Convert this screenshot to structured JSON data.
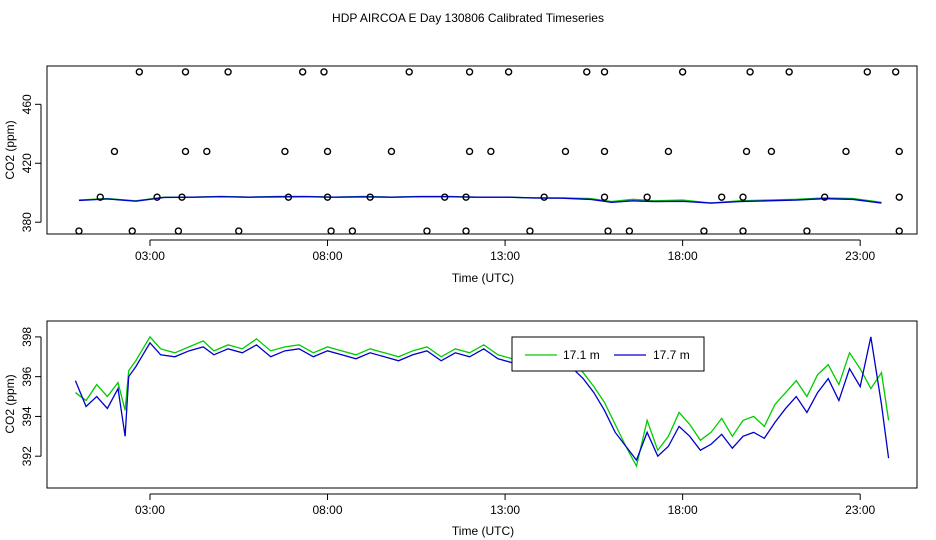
{
  "title": "HDP AIRCOA E  Day 130806  Calibrated Timeseries",
  "chart_data": [
    {
      "type": "scatter",
      "xlabel": "Time (UTC)",
      "ylabel": "CO2 (ppm)",
      "xlim": [
        0.1,
        24.6
      ],
      "ylim": [
        372,
        486
      ],
      "x_ticks": [
        3,
        8,
        13,
        18,
        23
      ],
      "x_tick_labels": [
        "03:00",
        "08:00",
        "13:00",
        "18:00",
        "23:00"
      ],
      "y_ticks": [
        380,
        420,
        460
      ],
      "y_tick_labels": [
        "380",
        "420",
        "460"
      ],
      "grid": false,
      "lines": {
        "x": [
          1.0,
          1.8,
          2.6,
          3.4,
          4.2,
          5.0,
          5.8,
          6.6,
          7.4,
          8.2,
          9.0,
          9.8,
          10.6,
          11.4,
          12.2,
          13.0,
          13.8,
          14.6,
          15.4,
          16.0,
          16.6,
          17.2,
          18.0,
          18.8,
          19.6,
          20.4,
          21.2,
          22.0,
          22.8,
          23.6
        ],
        "green": [
          395.0,
          396.0,
          394.5,
          397.0,
          397.0,
          397.5,
          397.0,
          397.5,
          397.5,
          397.0,
          397.5,
          397.0,
          397.5,
          397.5,
          397.0,
          397.0,
          396.5,
          396.5,
          396.0,
          394.0,
          395.5,
          394.5,
          395.0,
          393.0,
          394.5,
          395.0,
          395.5,
          396.5,
          396.0,
          393.5
        ],
        "blue": [
          394.8,
          395.8,
          394.3,
          396.8,
          397.0,
          397.3,
          397.0,
          397.2,
          397.3,
          397.0,
          397.2,
          397.0,
          397.3,
          397.3,
          397.0,
          397.0,
          396.5,
          396.3,
          395.5,
          393.5,
          394.5,
          394.0,
          394.2,
          393.0,
          394.0,
          394.5,
          395.0,
          396.0,
          395.5,
          393.0
        ]
      },
      "points": [
        {
          "x": 1.6,
          "y": 397
        },
        {
          "x": 3.2,
          "y": 397
        },
        {
          "x": 3.9,
          "y": 397
        },
        {
          "x": 6.9,
          "y": 397
        },
        {
          "x": 8.0,
          "y": 397
        },
        {
          "x": 9.2,
          "y": 397
        },
        {
          "x": 11.3,
          "y": 397
        },
        {
          "x": 11.9,
          "y": 397
        },
        {
          "x": 14.1,
          "y": 397
        },
        {
          "x": 15.8,
          "y": 397
        },
        {
          "x": 17.0,
          "y": 397
        },
        {
          "x": 19.1,
          "y": 397
        },
        {
          "x": 19.7,
          "y": 397
        },
        {
          "x": 22.0,
          "y": 397
        },
        {
          "x": 24.1,
          "y": 397
        },
        {
          "x": 1.0,
          "y": 374
        },
        {
          "x": 2.5,
          "y": 374
        },
        {
          "x": 3.8,
          "y": 374
        },
        {
          "x": 5.5,
          "y": 374
        },
        {
          "x": 8.1,
          "y": 374
        },
        {
          "x": 8.7,
          "y": 374
        },
        {
          "x": 10.8,
          "y": 374
        },
        {
          "x": 11.9,
          "y": 374
        },
        {
          "x": 13.7,
          "y": 374
        },
        {
          "x": 15.9,
          "y": 374
        },
        {
          "x": 16.5,
          "y": 374
        },
        {
          "x": 18.6,
          "y": 374
        },
        {
          "x": 19.7,
          "y": 374
        },
        {
          "x": 21.5,
          "y": 374
        },
        {
          "x": 24.1,
          "y": 374
        },
        {
          "x": 2.0,
          "y": 428
        },
        {
          "x": 4.0,
          "y": 428
        },
        {
          "x": 4.6,
          "y": 428
        },
        {
          "x": 6.8,
          "y": 428
        },
        {
          "x": 8.0,
          "y": 428
        },
        {
          "x": 9.8,
          "y": 428
        },
        {
          "x": 12.0,
          "y": 428
        },
        {
          "x": 12.6,
          "y": 428
        },
        {
          "x": 14.7,
          "y": 428
        },
        {
          "x": 15.8,
          "y": 428
        },
        {
          "x": 17.6,
          "y": 428
        },
        {
          "x": 19.8,
          "y": 428
        },
        {
          "x": 20.5,
          "y": 428
        },
        {
          "x": 22.6,
          "y": 428
        },
        {
          "x": 24.1,
          "y": 428
        },
        {
          "x": 2.7,
          "y": 482
        },
        {
          "x": 4.0,
          "y": 482
        },
        {
          "x": 5.2,
          "y": 482
        },
        {
          "x": 7.3,
          "y": 482
        },
        {
          "x": 7.9,
          "y": 482
        },
        {
          "x": 10.3,
          "y": 482
        },
        {
          "x": 12.0,
          "y": 482
        },
        {
          "x": 13.1,
          "y": 482
        },
        {
          "x": 15.3,
          "y": 482
        },
        {
          "x": 15.8,
          "y": 482
        },
        {
          "x": 18.0,
          "y": 482
        },
        {
          "x": 19.9,
          "y": 482
        },
        {
          "x": 21.0,
          "y": 482
        },
        {
          "x": 23.2,
          "y": 482
        },
        {
          "x": 24.0,
          "y": 482
        }
      ]
    },
    {
      "type": "line",
      "xlabel": "Time (UTC)",
      "ylabel": "CO2 (ppm)",
      "xlim": [
        0.1,
        24.6
      ],
      "ylim": [
        390.4,
        398.8
      ],
      "x_ticks": [
        3,
        8,
        13,
        18,
        23
      ],
      "x_tick_labels": [
        "03:00",
        "08:00",
        "13:00",
        "18:00",
        "23:00"
      ],
      "y_ticks": [
        392,
        394,
        396,
        398
      ],
      "y_tick_labels": [
        "392",
        "394",
        "396",
        "398"
      ],
      "grid": false,
      "legend_position": "top-center-right",
      "x": [
        0.9,
        1.2,
        1.5,
        1.8,
        2.1,
        2.3,
        2.4,
        2.6,
        2.8,
        3.0,
        3.3,
        3.7,
        4.1,
        4.5,
        4.8,
        5.2,
        5.6,
        6.0,
        6.4,
        6.8,
        7.2,
        7.6,
        8.0,
        8.4,
        8.8,
        9.2,
        9.6,
        10.0,
        10.4,
        10.8,
        11.2,
        11.6,
        12.0,
        12.4,
        12.8,
        13.2,
        13.6,
        14.0,
        14.4,
        14.8,
        15.2,
        15.5,
        15.8,
        16.1,
        16.4,
        16.7,
        17.0,
        17.3,
        17.6,
        17.9,
        18.2,
        18.5,
        18.8,
        19.1,
        19.4,
        19.7,
        20.0,
        20.3,
        20.6,
        20.9,
        21.2,
        21.5,
        21.8,
        22.1,
        22.4,
        22.7,
        23.0,
        23.3,
        23.6,
        23.8
      ],
      "series": [
        {
          "name": "17.1 m",
          "color": "#00cc00",
          "values": [
            395.2,
            394.8,
            395.6,
            395.0,
            395.7,
            394.3,
            396.3,
            396.8,
            397.4,
            398.0,
            397.4,
            397.2,
            397.5,
            397.8,
            397.3,
            397.6,
            397.4,
            397.9,
            397.3,
            397.5,
            397.6,
            397.2,
            397.5,
            397.3,
            397.1,
            397.4,
            397.2,
            397.0,
            397.3,
            397.5,
            397.0,
            397.4,
            397.2,
            397.6,
            397.1,
            396.9,
            396.8,
            396.9,
            396.6,
            397.0,
            396.2,
            395.5,
            394.7,
            393.6,
            392.5,
            391.5,
            393.8,
            392.3,
            393.0,
            394.2,
            393.6,
            392.8,
            393.2,
            393.9,
            393.0,
            393.8,
            394.0,
            393.5,
            394.6,
            395.2,
            395.8,
            395.0,
            396.1,
            396.6,
            395.6,
            397.2,
            396.4,
            395.4,
            396.2,
            393.8
          ]
        },
        {
          "name": "17.7 m",
          "color": "#0000cc",
          "values": [
            395.8,
            394.5,
            395.0,
            394.4,
            395.4,
            393.0,
            396.0,
            396.5,
            397.1,
            397.7,
            397.1,
            397.0,
            397.3,
            397.5,
            397.1,
            397.4,
            397.2,
            397.6,
            397.0,
            397.3,
            397.4,
            397.0,
            397.3,
            397.1,
            396.9,
            397.2,
            397.0,
            396.8,
            397.1,
            397.3,
            396.8,
            397.2,
            397.0,
            397.4,
            396.9,
            396.7,
            396.6,
            396.6,
            396.3,
            396.6,
            395.9,
            395.2,
            394.3,
            393.2,
            392.5,
            391.8,
            393.2,
            392.0,
            392.5,
            393.5,
            393.0,
            392.3,
            392.6,
            393.1,
            392.4,
            393.0,
            393.2,
            392.9,
            393.7,
            394.4,
            395.0,
            394.2,
            395.2,
            395.9,
            394.8,
            396.4,
            395.5,
            398.0,
            394.6,
            391.9
          ]
        }
      ]
    }
  ]
}
